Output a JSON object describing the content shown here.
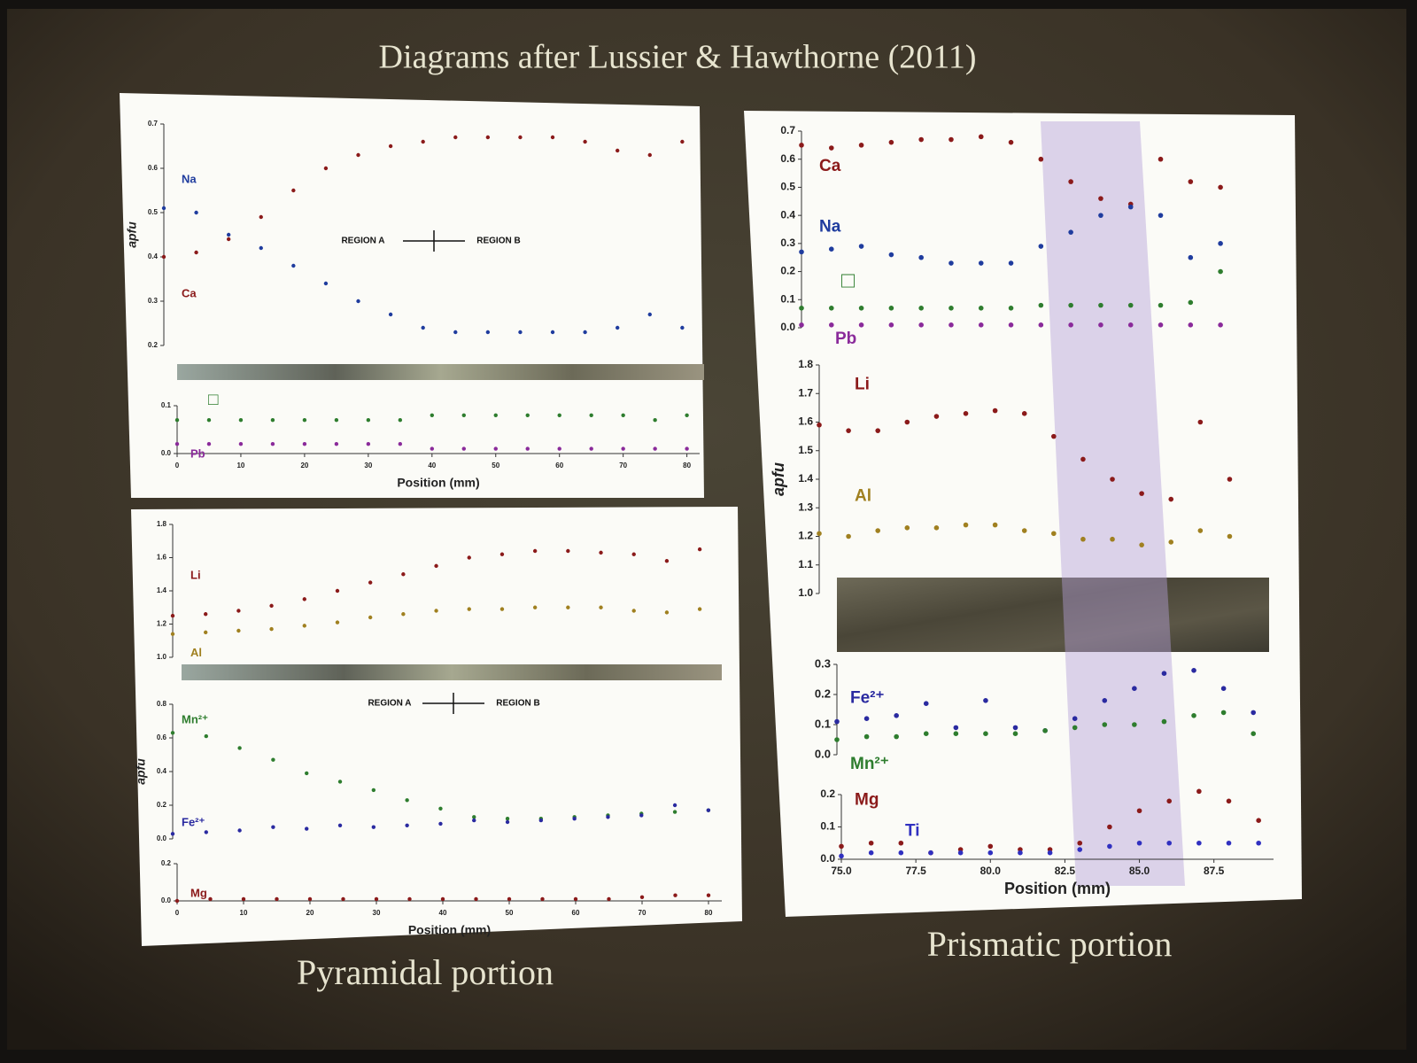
{
  "title": "Diagrams  after Lussier & Hawthorne (2011)",
  "captions": [
    "Pyramidal portion",
    "Prismatic portion"
  ],
  "chart_data": [
    {
      "type": "scatter",
      "ylabel": "apfu",
      "annotations": [
        "REGION A",
        "REGION B"
      ],
      "xlim": [
        0,
        82
      ],
      "ylim": [
        0.2,
        0.7
      ],
      "yticks": [
        0.2,
        0.3,
        0.4,
        0.5,
        0.6,
        0.7
      ],
      "x": [
        0,
        5,
        10,
        15,
        20,
        25,
        30,
        35,
        40,
        45,
        50,
        55,
        60,
        65,
        70,
        75,
        80
      ],
      "series": [
        {
          "name": "Na",
          "color": "#1f3c9e",
          "values": [
            0.51,
            0.5,
            0.45,
            0.42,
            0.38,
            0.34,
            0.3,
            0.27,
            0.24,
            0.23,
            0.23,
            0.23,
            0.23,
            0.23,
            0.24,
            0.27,
            0.24
          ]
        },
        {
          "name": "Ca",
          "color": "#8b1a1a",
          "values": [
            0.4,
            0.41,
            0.44,
            0.49,
            0.55,
            0.6,
            0.63,
            0.65,
            0.66,
            0.67,
            0.67,
            0.67,
            0.67,
            0.66,
            0.64,
            0.63,
            0.66
          ]
        }
      ]
    },
    {
      "type": "scatter",
      "xlabel": "Position (mm)",
      "xlim": [
        0,
        82
      ],
      "xticks": [
        0,
        10,
        20,
        30,
        40,
        50,
        60,
        70,
        80
      ],
      "ylim": [
        0,
        0.1
      ],
      "yticks": [
        {
          "value": 0,
          "label": "0.0"
        },
        0.1
      ],
      "x": [
        0,
        5,
        10,
        15,
        20,
        25,
        30,
        35,
        40,
        45,
        50,
        55,
        60,
        65,
        70,
        75,
        80
      ],
      "series": [
        {
          "name": "□",
          "color": "#2e7d2e",
          "values": [
            0.07,
            0.07,
            0.07,
            0.07,
            0.07,
            0.07,
            0.07,
            0.07,
            0.08,
            0.08,
            0.08,
            0.08,
            0.08,
            0.08,
            0.08,
            0.07,
            0.08
          ]
        },
        {
          "name": "Pb",
          "color": "#8a2a9a",
          "values": [
            0.02,
            0.02,
            0.02,
            0.02,
            0.02,
            0.02,
            0.02,
            0.02,
            0.01,
            0.01,
            0.01,
            0.01,
            0.01,
            0.01,
            0.01,
            0.01,
            0.01
          ]
        }
      ]
    },
    {
      "type": "scatter",
      "xlim": [
        0,
        82
      ],
      "ylim": [
        1,
        1.8
      ],
      "yticks": [
        {
          "value": 1,
          "label": "1.0"
        },
        1.2,
        1.4,
        1.6,
        1.8
      ],
      "x": [
        0,
        5,
        10,
        15,
        20,
        25,
        30,
        35,
        40,
        45,
        50,
        55,
        60,
        65,
        70,
        75,
        80
      ],
      "series": [
        {
          "name": "Li",
          "color": "#8b1a1a",
          "values": [
            1.25,
            1.26,
            1.28,
            1.31,
            1.35,
            1.4,
            1.45,
            1.5,
            1.55,
            1.6,
            1.62,
            1.64,
            1.64,
            1.63,
            1.62,
            1.58,
            1.65
          ]
        },
        {
          "name": "Al",
          "color": "#a08020",
          "values": [
            1.14,
            1.15,
            1.16,
            1.17,
            1.19,
            1.21,
            1.24,
            1.26,
            1.28,
            1.29,
            1.29,
            1.3,
            1.3,
            1.3,
            1.28,
            1.27,
            1.29
          ]
        }
      ]
    },
    {
      "type": "scatter",
      "ylabel": "apfu",
      "annotations": [
        "REGION A",
        "REGION B"
      ],
      "xlim": [
        0,
        82
      ],
      "ylim": [
        0,
        0.8
      ],
      "yticks": [
        {
          "value": 0,
          "label": "0.0"
        },
        0.2,
        0.4,
        0.6,
        0.8
      ],
      "x": [
        0,
        5,
        10,
        15,
        20,
        25,
        30,
        35,
        40,
        45,
        50,
        55,
        60,
        65,
        70,
        75,
        80
      ],
      "series": [
        {
          "name": "Mn²⁺",
          "color": "#2e7d2e",
          "values": [
            0.63,
            0.61,
            0.54,
            0.47,
            0.39,
            0.34,
            0.29,
            0.23,
            0.18,
            0.13,
            0.12,
            0.12,
            0.13,
            0.14,
            0.15,
            0.16,
            0.17
          ]
        },
        {
          "name": "Fe²⁺",
          "color": "#2a2aa0",
          "values": [
            0.03,
            0.04,
            0.05,
            0.07,
            0.06,
            0.08,
            0.07,
            0.08,
            0.09,
            0.11,
            0.1,
            0.11,
            0.12,
            0.13,
            0.14,
            0.2,
            0.17
          ]
        }
      ]
    },
    {
      "type": "scatter",
      "xlabel": "Position (mm)",
      "xlim": [
        0,
        82
      ],
      "xticks": [
        0,
        10,
        20,
        30,
        40,
        50,
        60,
        70,
        80
      ],
      "ylim": [
        0,
        0.2
      ],
      "yticks": [
        {
          "value": 0,
          "label": "0.0"
        },
        0.2
      ],
      "x": [
        0,
        5,
        10,
        15,
        20,
        25,
        30,
        35,
        40,
        45,
        50,
        55,
        60,
        65,
        70,
        75,
        80
      ],
      "series": [
        {
          "name": "Mg",
          "color": "#8b1a1a",
          "values": [
            0,
            0.01,
            0.01,
            0.01,
            0.01,
            0.01,
            0.01,
            0.01,
            0.01,
            0.01,
            0.01,
            0.01,
            0.01,
            0.01,
            0.02,
            0.03,
            0.03
          ]
        }
      ]
    },
    {
      "type": "scatter",
      "xlim": [
        75,
        89.5
      ],
      "ylim": [
        0,
        0.7
      ],
      "yticks": [
        {
          "value": 0,
          "label": "0.0"
        },
        0.1,
        0.2,
        0.3,
        0.4,
        0.5,
        0.6,
        0.7
      ],
      "x": [
        75,
        76,
        77,
        78,
        79,
        80,
        81,
        82,
        83,
        84,
        85,
        86,
        87,
        88,
        89
      ],
      "series": [
        {
          "name": "Ca",
          "color": "#8b1a1a",
          "values": [
            0.65,
            0.64,
            0.65,
            0.66,
            0.67,
            0.67,
            0.68,
            0.66,
            0.6,
            0.52,
            0.46,
            0.44,
            0.6,
            0.52,
            0.5
          ]
        },
        {
          "name": "Na",
          "color": "#1f3c9e",
          "values": [
            0.27,
            0.28,
            0.29,
            0.26,
            0.25,
            0.23,
            0.23,
            0.23,
            0.29,
            0.34,
            0.4,
            0.43,
            0.4,
            0.25,
            0.3
          ]
        },
        {
          "name": "□",
          "color": "#2e7d2e",
          "values": [
            0.07,
            0.07,
            0.07,
            0.07,
            0.07,
            0.07,
            0.07,
            0.07,
            0.08,
            0.08,
            0.08,
            0.08,
            0.08,
            0.09,
            0.2
          ]
        },
        {
          "name": "Pb",
          "color": "#8a2a9a",
          "values": [
            0.01,
            0.01,
            0.01,
            0.01,
            0.01,
            0.01,
            0.01,
            0.01,
            0.01,
            0.01,
            0.01,
            0.01,
            0.01,
            0.01,
            0.01
          ]
        }
      ]
    },
    {
      "type": "scatter",
      "ylabel": "apfu",
      "xlim": [
        75,
        89.5
      ],
      "ylim": [
        1,
        1.8
      ],
      "yticks": [
        {
          "value": 1,
          "label": "1.0"
        },
        1.1,
        1.2,
        1.3,
        1.4,
        1.5,
        1.6,
        1.7,
        1.8
      ],
      "x": [
        75,
        76,
        77,
        78,
        79,
        80,
        81,
        82,
        83,
        84,
        85,
        86,
        87,
        88,
        89
      ],
      "series": [
        {
          "name": "Li",
          "color": "#8b1a1a",
          "values": [
            1.59,
            1.57,
            1.57,
            1.6,
            1.62,
            1.63,
            1.64,
            1.63,
            1.55,
            1.47,
            1.4,
            1.35,
            1.33,
            1.6,
            1.4
          ]
        },
        {
          "name": "Al",
          "color": "#a08020",
          "values": [
            1.21,
            1.2,
            1.22,
            1.23,
            1.23,
            1.24,
            1.24,
            1.22,
            1.21,
            1.19,
            1.19,
            1.17,
            1.18,
            1.22,
            1.2
          ]
        }
      ]
    },
    {
      "type": "scatter",
      "xlim": [
        75,
        89.5
      ],
      "ylim": [
        0,
        0.3
      ],
      "yticks": [
        {
          "value": 0,
          "label": "0.0"
        },
        0.1,
        0.2,
        0.3
      ],
      "x": [
        75,
        76,
        77,
        78,
        79,
        80,
        81,
        82,
        83,
        84,
        85,
        86,
        87,
        88,
        89
      ],
      "series": [
        {
          "name": "Fe²⁺",
          "color": "#2a2aa0",
          "values": [
            0.11,
            0.12,
            0.13,
            0.17,
            0.09,
            0.18,
            0.09,
            0.08,
            0.12,
            0.18,
            0.22,
            0.27,
            0.28,
            0.22,
            0.14
          ]
        },
        {
          "name": "Mn²⁺",
          "color": "#2e7d2e",
          "values": [
            0.05,
            0.06,
            0.06,
            0.07,
            0.07,
            0.07,
            0.07,
            0.08,
            0.09,
            0.1,
            0.1,
            0.11,
            0.13,
            0.14,
            0.07
          ]
        }
      ]
    },
    {
      "type": "scatter",
      "xlabel": "Position (mm)",
      "xlim": [
        75,
        89.5
      ],
      "xticks": [
        {
          "value": 75,
          "label": "75.0"
        },
        77.5,
        {
          "value": 80,
          "label": "80.0"
        },
        82.5,
        {
          "value": 85,
          "label": "85.0"
        },
        87.5
      ],
      "ylim": [
        0,
        0.2
      ],
      "yticks": [
        {
          "value": 0,
          "label": "0.0"
        },
        0.1,
        0.2
      ],
      "x": [
        75,
        76,
        77,
        78,
        79,
        80,
        81,
        82,
        83,
        84,
        85,
        86,
        87,
        88,
        89
      ],
      "series": [
        {
          "name": "Mg",
          "color": "#8b1a1a",
          "values": [
            0.04,
            0.05,
            0.05,
            0.02,
            0.03,
            0.04,
            0.03,
            0.03,
            0.05,
            0.1,
            0.15,
            0.18,
            0.21,
            0.18,
            0.12
          ]
        },
        {
          "name": "Ti",
          "color": "#3030c0",
          "values": [
            0.01,
            0.02,
            0.02,
            0.02,
            0.02,
            0.02,
            0.02,
            0.02,
            0.03,
            0.04,
            0.05,
            0.05,
            0.05,
            0.05,
            0.05
          ]
        }
      ]
    }
  ]
}
